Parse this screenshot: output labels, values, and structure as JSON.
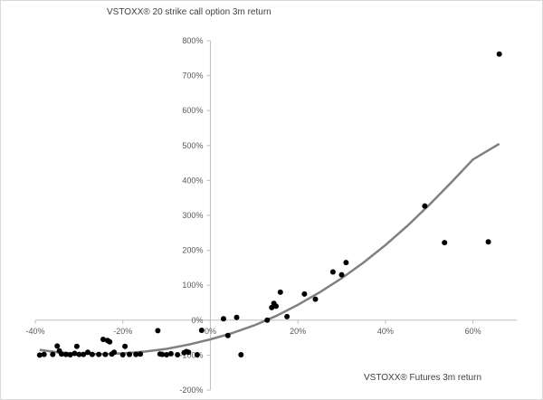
{
  "chart_data": {
    "type": "scatter",
    "title": "",
    "xlabel": "VSTOXX®  Futures 3m return",
    "ylabel": "VSTOXX®  20 strike call option 3m return",
    "xlim": [
      -0.4,
      0.7
    ],
    "ylim": [
      -2.0,
      8.0
    ],
    "x_ticks": [
      -0.4,
      -0.2,
      0.0,
      0.2,
      0.4,
      0.6
    ],
    "x_tick_labels": [
      "-40%",
      "-20%",
      "0%",
      "20%",
      "40%",
      "60%"
    ],
    "y_ticks": [
      -2,
      -1,
      0,
      1,
      2,
      3,
      4,
      5,
      6,
      7,
      8
    ],
    "y_tick_labels": [
      "-200%",
      "-100%",
      "0%",
      "100%",
      "200%",
      "300%",
      "400%",
      "500%",
      "600%",
      "700%",
      "800%"
    ],
    "grid": false,
    "legend": "none",
    "series": [
      {
        "marker_color": "#000000",
        "points": [
          [
            -0.39,
            -1.0
          ],
          [
            -0.38,
            -0.98
          ],
          [
            -0.36,
            -0.98
          ],
          [
            -0.35,
            -0.74
          ],
          [
            -0.345,
            -0.88
          ],
          [
            -0.34,
            -0.97
          ],
          [
            -0.33,
            -0.98
          ],
          [
            -0.32,
            -0.99
          ],
          [
            -0.31,
            -0.95
          ],
          [
            -0.305,
            -0.75
          ],
          [
            -0.3,
            -0.98
          ],
          [
            -0.29,
            -0.98
          ],
          [
            -0.28,
            -0.92
          ],
          [
            -0.27,
            -0.98
          ],
          [
            -0.255,
            -0.98
          ],
          [
            -0.245,
            -0.55
          ],
          [
            -0.24,
            -0.98
          ],
          [
            -0.235,
            -0.58
          ],
          [
            -0.23,
            -0.62
          ],
          [
            -0.225,
            -0.97
          ],
          [
            -0.22,
            -0.92
          ],
          [
            -0.2,
            -0.99
          ],
          [
            -0.195,
            -0.75
          ],
          [
            -0.185,
            -0.98
          ],
          [
            -0.17,
            -0.98
          ],
          [
            -0.16,
            -0.97
          ],
          [
            -0.12,
            -0.3
          ],
          [
            -0.115,
            -0.97
          ],
          [
            -0.11,
            -0.98
          ],
          [
            -0.1,
            -0.99
          ],
          [
            -0.09,
            -0.96
          ],
          [
            -0.075,
            -0.99
          ],
          [
            -0.06,
            -0.93
          ],
          [
            -0.055,
            -0.9
          ],
          [
            -0.05,
            -0.92
          ],
          [
            -0.03,
            -0.99
          ],
          [
            -0.02,
            -0.29
          ],
          [
            0.03,
            0.04
          ],
          [
            0.04,
            -0.44
          ],
          [
            0.06,
            0.08
          ],
          [
            0.07,
            -0.99
          ],
          [
            0.13,
            0.0
          ],
          [
            0.14,
            0.36
          ],
          [
            0.145,
            0.48
          ],
          [
            0.15,
            0.4
          ],
          [
            0.16,
            0.8
          ],
          [
            0.175,
            0.1
          ],
          [
            0.215,
            0.75
          ],
          [
            0.24,
            0.6
          ],
          [
            0.28,
            1.38
          ],
          [
            0.3,
            1.3
          ],
          [
            0.31,
            1.65
          ],
          [
            0.49,
            3.27
          ],
          [
            0.535,
            2.22
          ],
          [
            0.635,
            2.24
          ],
          [
            0.66,
            7.62
          ]
        ]
      }
    ],
    "trendline": {
      "color": "#808080",
      "x": [
        -0.39,
        -0.35,
        -0.3,
        -0.25,
        -0.2,
        -0.15,
        -0.1,
        -0.05,
        0.0,
        0.05,
        0.1,
        0.15,
        0.2,
        0.25,
        0.3,
        0.35,
        0.4,
        0.45,
        0.5,
        0.55,
        0.6,
        0.66
      ],
      "y": [
        -0.85,
        -0.92,
        -0.96,
        -0.97,
        -0.95,
        -0.9,
        -0.82,
        -0.7,
        -0.55,
        -0.37,
        -0.15,
        0.12,
        0.44,
        0.8,
        1.2,
        1.65,
        2.15,
        2.7,
        3.3,
        3.94,
        4.6,
        5.05
      ]
    }
  }
}
